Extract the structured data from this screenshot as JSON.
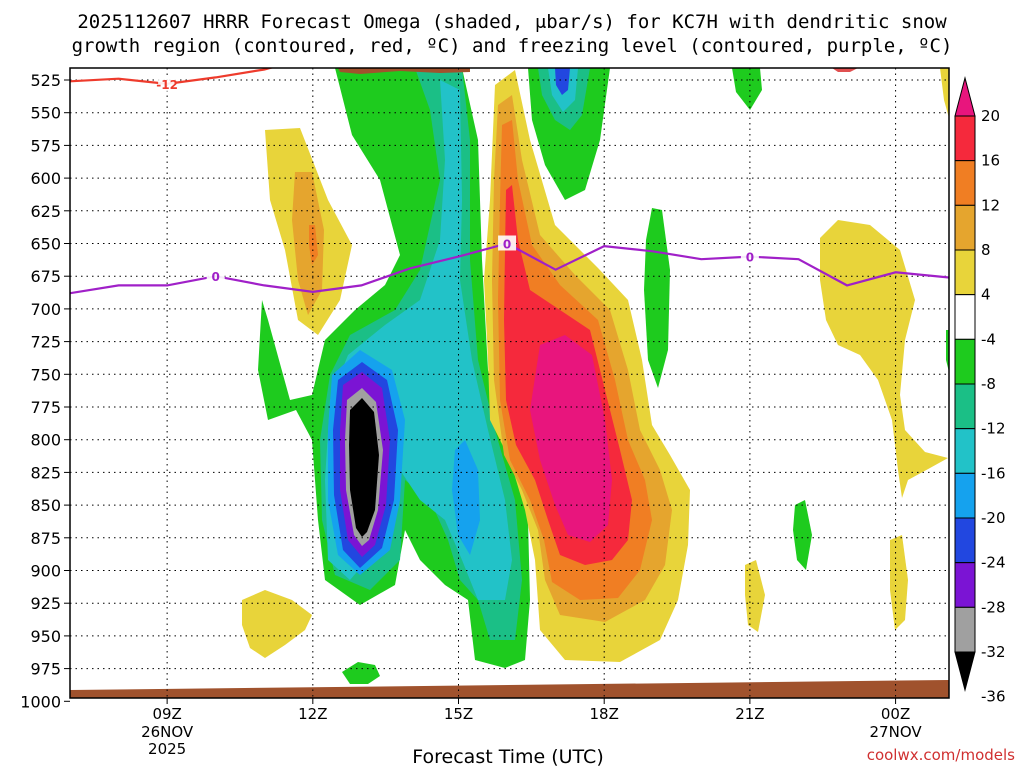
{
  "chart_data": {
    "type": "heatmap",
    "title_line1": "2025112607 HRRR Forecast Omega (shaded, μbar/s) for KC7H with dendritic snow",
    "title_line2": "growth region (contoured, red, ºC) and freezing level (contoured, purple, ºC)",
    "xlabel": "Forecast Time (UTC)",
    "credit": "coolwx.com/models",
    "x_range_hours": [
      7,
      25.1
    ],
    "y_range_mb": [
      525,
      1000
    ],
    "y_ticks": [
      "525",
      "550",
      "575",
      "600",
      "625",
      "650",
      "675",
      "700",
      "725",
      "750",
      "775",
      "800",
      "825",
      "850",
      "875",
      "900",
      "925",
      "950",
      "975",
      "1000"
    ],
    "x_ticks": [
      {
        "hour": 9,
        "label": "09Z",
        "sub1": "26NOV",
        "sub2": "2025"
      },
      {
        "hour": 12,
        "label": "12Z",
        "sub1": "",
        "sub2": ""
      },
      {
        "hour": 15,
        "label": "15Z",
        "sub1": "",
        "sub2": ""
      },
      {
        "hour": 18,
        "label": "18Z",
        "sub1": "",
        "sub2": ""
      },
      {
        "hour": 21,
        "label": "21Z",
        "sub1": "",
        "sub2": ""
      },
      {
        "hour": 24,
        "label": "00Z",
        "sub1": "27NOV",
        "sub2": ""
      }
    ],
    "colorbar": {
      "labels": [
        "20",
        "16",
        "12",
        "8",
        "4",
        "-4",
        "-8",
        "-12",
        "-16",
        "-20",
        "-24",
        "-28",
        "-32",
        "-36"
      ],
      "colors": [
        "#e8157d",
        "#f5293c",
        "#f07e23",
        "#e5a52e",
        "#e8d43a",
        "#ffffff",
        "#1ecb1e",
        "#1bbf86",
        "#22c2c8",
        "#15a2ee",
        "#2247e0",
        "#7b14d4",
        "#a0a0a0",
        "#000000"
      ]
    },
    "freezing_level": {
      "label": "0",
      "color": "#a020c8",
      "hours": [
        7,
        8,
        9,
        10,
        11,
        12,
        13,
        14,
        15,
        16,
        17,
        18,
        19,
        20,
        21,
        22,
        23,
        24,
        25.1
      ],
      "mb": [
        688,
        682,
        682,
        675,
        682,
        687,
        682,
        669,
        660,
        650,
        670,
        652,
        656,
        662,
        660,
        662,
        682,
        672,
        676
      ]
    },
    "dgz_contour": {
      "label": "-12",
      "color": "#ee3b2c",
      "hours": [
        7,
        8,
        9,
        10,
        11,
        11.7
      ],
      "mb": [
        526,
        524,
        528,
        523,
        517,
        510
      ]
    },
    "omega_field_regions": [
      {
        "name": "strong-ascent-core",
        "value_range": "below -36",
        "center_hour": 13.0,
        "center_mb": 800
      },
      {
        "name": "descent-core",
        "value_range": "above 20",
        "center_hour": 17.2,
        "center_mb": 790
      }
    ]
  }
}
